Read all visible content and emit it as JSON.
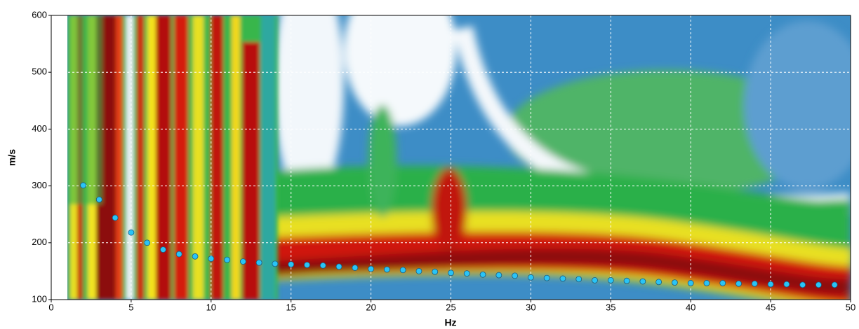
{
  "chart_data": {
    "type": "scatter",
    "x_label": "Hz",
    "y_label": "m/s",
    "x": [
      2,
      3,
      4,
      5,
      6,
      7,
      8,
      9,
      10,
      11,
      12,
      13,
      14,
      15,
      16,
      17,
      18,
      19,
      20,
      21,
      22,
      23,
      24,
      25,
      26,
      27,
      28,
      29,
      30,
      31,
      32,
      33,
      34,
      35,
      36,
      37,
      38,
      39,
      40,
      41,
      42,
      43,
      44,
      45,
      46,
      47,
      48,
      49
    ],
    "values": [
      301,
      276,
      244,
      218,
      200,
      188,
      180,
      176,
      172,
      170,
      167,
      165,
      163,
      162,
      161,
      160,
      158,
      156,
      154,
      153,
      152,
      150,
      149,
      147,
      146,
      144,
      143,
      142,
      139,
      138,
      137,
      136,
      134,
      134,
      133,
      132,
      131,
      130,
      129,
      129,
      129,
      128,
      128,
      127,
      127,
      126,
      126,
      126
    ],
    "color": "#29c4f6",
    "xlim": [
      0,
      50
    ],
    "xticks": [
      0,
      5,
      10,
      15,
      20,
      25,
      30,
      35,
      40,
      45,
      50
    ],
    "ylim": [
      100,
      600
    ],
    "yticks": [
      100,
      200,
      300,
      400,
      500,
      600
    ],
    "grid": true
  }
}
